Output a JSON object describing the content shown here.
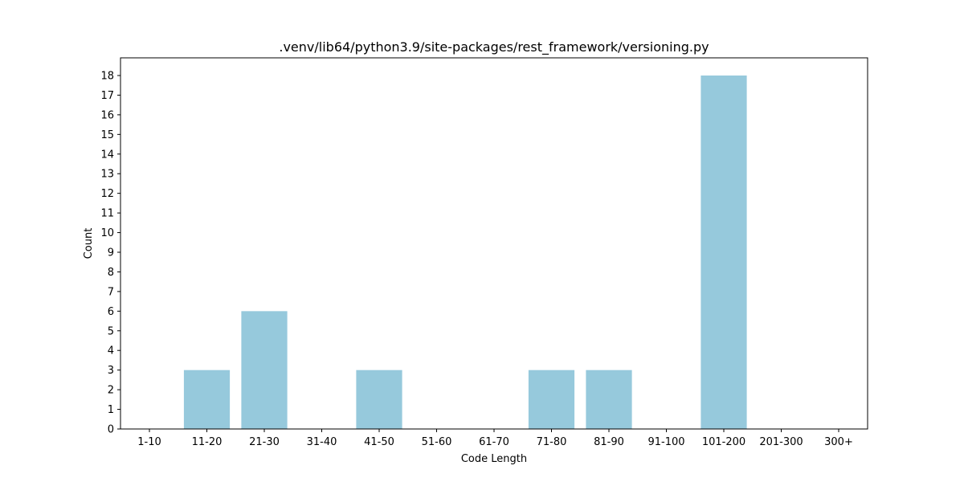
{
  "chart_data": {
    "type": "bar",
    "title": ".venv/lib64/python3.9/site-packages/rest_framework/versioning.py",
    "xlabel": "Code Length",
    "ylabel": "Count",
    "categories": [
      "1-10",
      "11-20",
      "21-30",
      "31-40",
      "41-50",
      "51-60",
      "61-70",
      "71-80",
      "81-90",
      "91-100",
      "101-200",
      "201-300",
      "300+"
    ],
    "values": [
      0,
      3,
      6,
      0,
      3,
      0,
      0,
      3,
      3,
      0,
      18,
      0,
      0
    ],
    "ylim": [
      0,
      18.9
    ],
    "yticks": [
      0,
      1,
      2,
      3,
      4,
      5,
      6,
      7,
      8,
      9,
      10,
      11,
      12,
      13,
      14,
      15,
      16,
      17,
      18
    ],
    "grid": false,
    "bar_color": "#96c9dc"
  }
}
